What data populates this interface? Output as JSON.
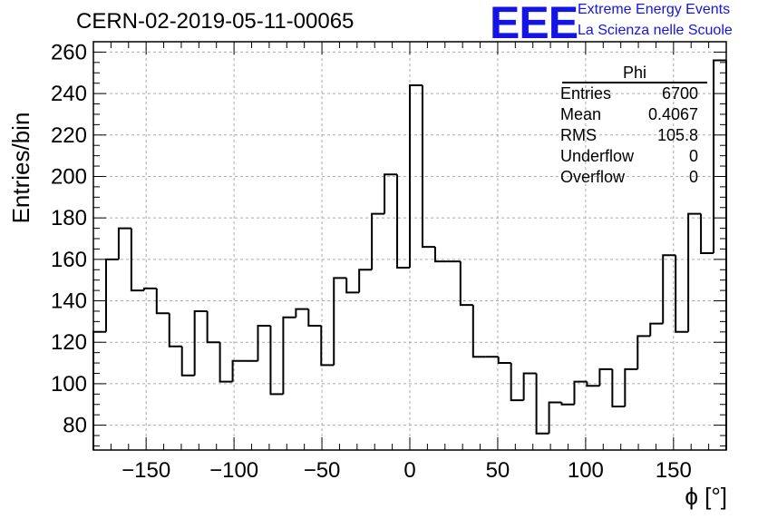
{
  "header": {
    "run_title": "CERN-02-2019-05-11-00065",
    "logo_text": "EEE",
    "logo_line1": "Extreme Energy Events",
    "logo_line2": "La Scienza nelle Scuole"
  },
  "stats_box": {
    "title": "Phi",
    "rows": [
      {
        "label": "Entries",
        "value": "6700"
      },
      {
        "label": "Mean",
        "value": "0.4067"
      },
      {
        "label": "RMS",
        "value": "105.8"
      },
      {
        "label": "Underflow",
        "value": "0"
      },
      {
        "label": "Overflow",
        "value": "0"
      }
    ]
  },
  "chart_data": {
    "type": "histogram",
    "title": "CERN-02-2019-05-11-00065",
    "xlabel": "ϕ [°]",
    "ylabel": "Entries/bin",
    "xlim": [
      -180,
      180
    ],
    "ylim": [
      68,
      265
    ],
    "xticks": [
      -150,
      -100,
      -50,
      0,
      50,
      100,
      150
    ],
    "yticks": [
      80,
      100,
      120,
      140,
      160,
      180,
      200,
      220,
      240,
      260
    ],
    "grid": true,
    "bin_width": 7.2,
    "bin_edges_start": -180,
    "values": [
      125,
      160,
      175,
      145,
      146,
      134,
      118,
      104,
      135,
      120,
      101,
      111,
      111,
      128,
      95,
      132,
      136,
      128,
      109,
      151,
      144,
      155,
      182,
      201,
      156,
      244,
      166,
      159,
      159,
      138,
      113,
      113,
      110,
      92,
      105,
      76,
      91,
      90,
      101,
      99,
      107,
      89,
      107,
      123,
      129,
      162,
      125,
      182,
      163,
      256
    ]
  }
}
